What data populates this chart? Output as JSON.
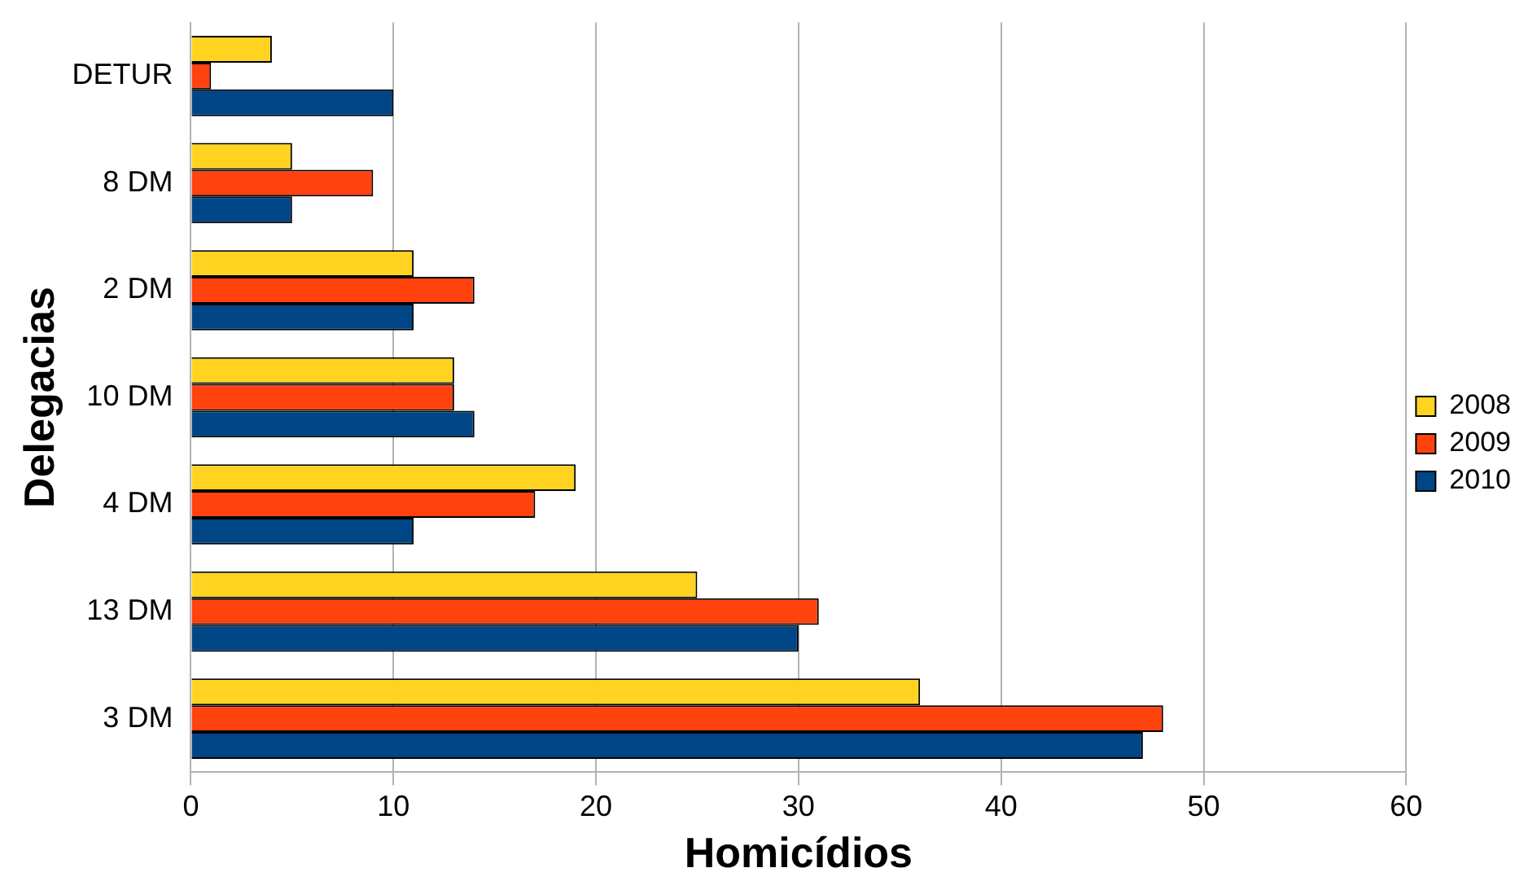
{
  "chart_data": {
    "type": "bar",
    "orientation": "horizontal",
    "xlabel": "Homicídios",
    "ylabel": "Delegacias",
    "categories": [
      "DETUR",
      "8 DM",
      "2 DM",
      "10 DM",
      "4 DM",
      "13 DM",
      "3 DM"
    ],
    "series": [
      {
        "name": "2008",
        "color": "#ffd320",
        "values": [
          4,
          5,
          11,
          13,
          19,
          25,
          36
        ]
      },
      {
        "name": "2009",
        "color": "#ff420e",
        "values": [
          1,
          9,
          14,
          13,
          17,
          31,
          48
        ]
      },
      {
        "name": "2010",
        "color": "#004586",
        "values": [
          10,
          5,
          11,
          14,
          11,
          30,
          47
        ]
      }
    ],
    "xlim": [
      0,
      60
    ],
    "xticks": [
      0,
      10,
      20,
      30,
      40,
      50,
      60
    ],
    "grid": "x",
    "legend": "right"
  }
}
